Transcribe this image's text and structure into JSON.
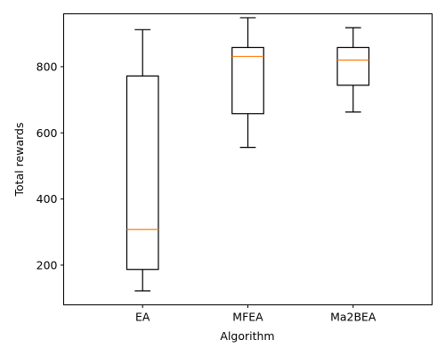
{
  "chart_data": {
    "type": "box",
    "xlabel": "Algorithm",
    "ylabel": "Total rewards",
    "ylim": [
      80,
      960
    ],
    "y_ticks": [
      200,
      400,
      600,
      800
    ],
    "grid": false,
    "categories": [
      "EA",
      "MFEA",
      "Ma2BEA"
    ],
    "boxes": [
      {
        "category": "EA",
        "whisker_low": 122,
        "q1": 187,
        "median": 308,
        "q3": 772,
        "whisker_high": 912
      },
      {
        "category": "MFEA",
        "whisker_low": 556,
        "q1": 658,
        "median": 831,
        "q3": 858,
        "whisker_high": 948
      },
      {
        "category": "Ma2BEA",
        "whisker_low": 663,
        "q1": 744,
        "median": 820,
        "q3": 858,
        "whisker_high": 918
      }
    ],
    "colors": {
      "box": "#000000",
      "median": "#ff7f0e",
      "axes": "#000000"
    }
  }
}
